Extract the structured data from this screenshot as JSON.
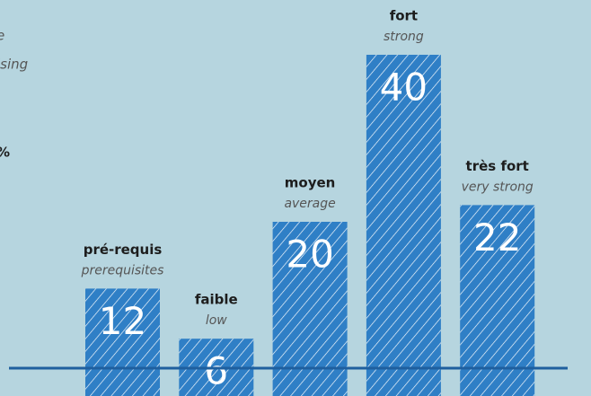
{
  "chart_data": {
    "type": "bar",
    "annotations": [
      "e",
      "ising",
      "%"
    ],
    "categories": [
      "pré-requis",
      "faible",
      "moyen",
      "fort",
      "très fort"
    ],
    "subtitles": [
      "prerequisites",
      "low",
      "average",
      "strong",
      "very strong"
    ],
    "values": [
      12,
      6,
      20,
      40,
      22
    ],
    "color": "#2f7fc6"
  }
}
